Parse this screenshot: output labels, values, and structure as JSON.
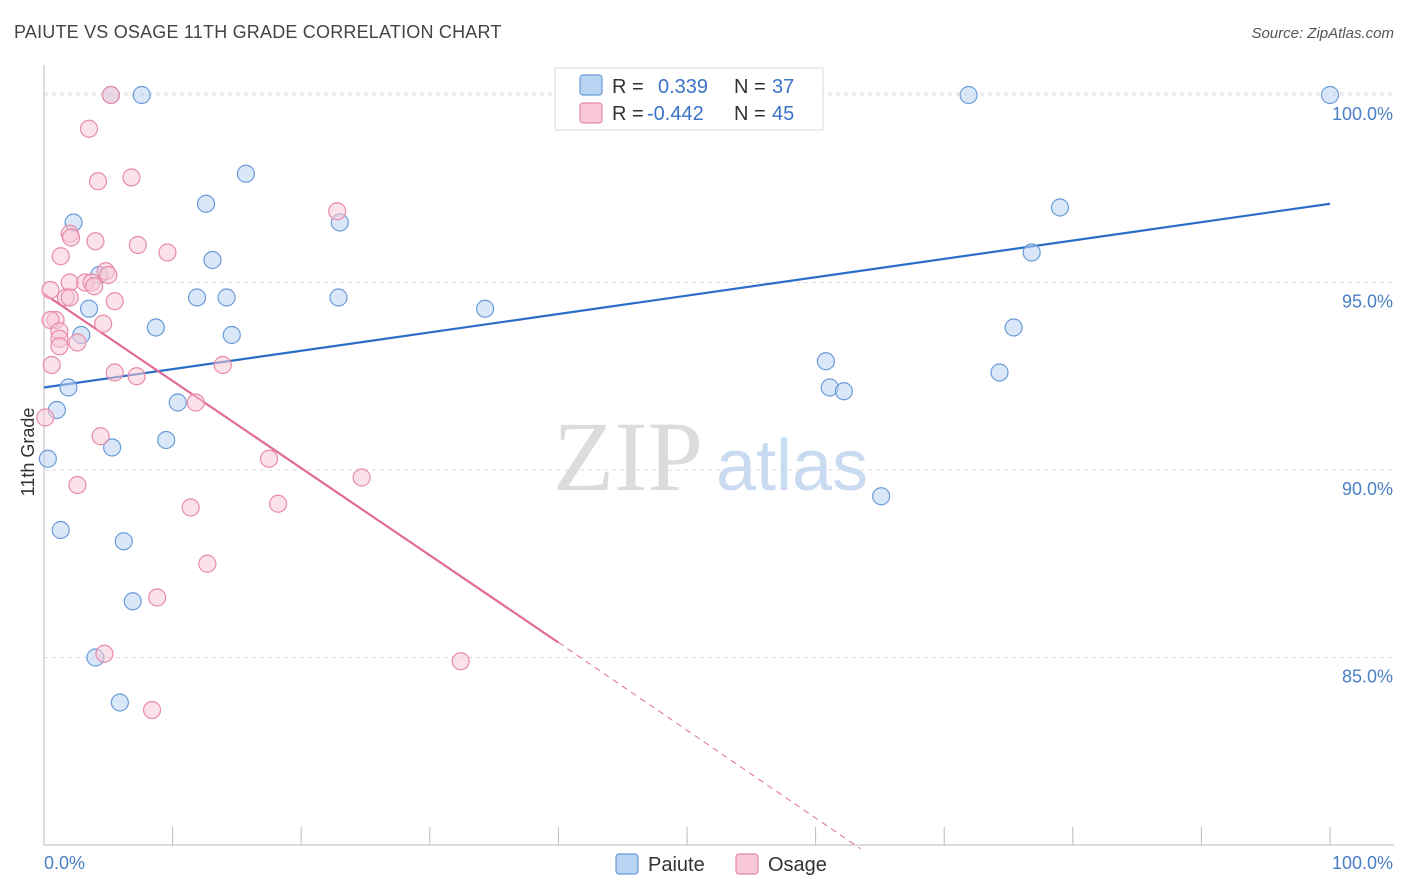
{
  "title": "PAIUTE VS OSAGE 11TH GRADE CORRELATION CHART",
  "source": "Source: ZipAtlas.com",
  "watermark": {
    "zip": "ZIP",
    "atlas": "atlas"
  },
  "colors": {
    "paiute_fill": "#b9d3f3",
    "paiute_stroke": "#6a9bd8",
    "paiute_line": "#2b6ec9",
    "osage_fill": "#f8c8d6",
    "osage_stroke": "#e88aa8",
    "osage_line": "#e06b97",
    "grid": "#dddddd",
    "axis_text": "#4a7fc4"
  },
  "legend": {
    "r_label": "R =",
    "n_label": "N =",
    "paiute": {
      "r": "0.339",
      "n": "37"
    },
    "osage": {
      "r": "-0.442",
      "n": "45"
    }
  },
  "chart_data": {
    "type": "scatter",
    "title": "PAIUTE VS OSAGE 11TH GRADE CORRELATION CHART",
    "xlabel": "",
    "ylabel": "11th Grade",
    "xlim": [
      0,
      100
    ],
    "ylim": [
      80.0,
      100.8
    ],
    "x_ticks": [
      "0.0%",
      "100.0%"
    ],
    "y_ticks": [
      {
        "value": 100,
        "label": "100.0%"
      },
      {
        "value": 95,
        "label": "95.0%"
      },
      {
        "value": 90,
        "label": "90.0%"
      },
      {
        "value": 85,
        "label": "85.0%"
      }
    ],
    "series": [
      {
        "name": "Paiute",
        "points": [
          [
            5.2,
            100.0
          ],
          [
            7.6,
            100.0
          ],
          [
            71.9,
            100.0
          ],
          [
            100.0,
            100.0
          ],
          [
            15.7,
            97.9
          ],
          [
            12.6,
            97.1
          ],
          [
            23.0,
            96.6
          ],
          [
            79.0,
            97.0
          ],
          [
            2.3,
            96.6
          ],
          [
            13.1,
            95.6
          ],
          [
            76.8,
            95.8
          ],
          [
            4.3,
            95.2
          ],
          [
            11.9,
            94.6
          ],
          [
            14.2,
            94.6
          ],
          [
            22.9,
            94.6
          ],
          [
            3.5,
            94.3
          ],
          [
            34.3,
            94.3
          ],
          [
            8.7,
            93.8
          ],
          [
            14.6,
            93.6
          ],
          [
            2.9,
            93.6
          ],
          [
            75.4,
            93.8
          ],
          [
            60.8,
            92.9
          ],
          [
            74.3,
            92.6
          ],
          [
            1.9,
            92.2
          ],
          [
            61.1,
            92.2
          ],
          [
            62.2,
            92.1
          ],
          [
            1.0,
            91.6
          ],
          [
            10.4,
            91.8
          ],
          [
            0.3,
            90.3
          ],
          [
            5.3,
            90.6
          ],
          [
            9.5,
            90.8
          ],
          [
            65.1,
            89.3
          ],
          [
            1.3,
            88.4
          ],
          [
            6.2,
            88.1
          ],
          [
            6.9,
            86.5
          ],
          [
            4.0,
            85.0
          ],
          [
            5.9,
            83.8
          ]
        ]
      },
      {
        "name": "Osage",
        "points": [
          [
            5.2,
            100.0
          ],
          [
            3.5,
            99.1
          ],
          [
            4.2,
            97.7
          ],
          [
            6.8,
            97.8
          ],
          [
            22.8,
            96.9
          ],
          [
            2.0,
            96.3
          ],
          [
            2.1,
            96.2
          ],
          [
            4.0,
            96.1
          ],
          [
            7.3,
            96.0
          ],
          [
            1.3,
            95.7
          ],
          [
            9.6,
            95.8
          ],
          [
            4.8,
            95.3
          ],
          [
            5.0,
            95.2
          ],
          [
            2.0,
            95.0
          ],
          [
            3.2,
            95.0
          ],
          [
            0.5,
            94.8
          ],
          [
            1.7,
            94.6
          ],
          [
            2.0,
            94.6
          ],
          [
            5.5,
            94.5
          ],
          [
            0.9,
            94.0
          ],
          [
            0.5,
            94.0
          ],
          [
            4.6,
            93.9
          ],
          [
            1.2,
            93.7
          ],
          [
            1.2,
            93.5
          ],
          [
            2.6,
            93.4
          ],
          [
            0.6,
            92.8
          ],
          [
            13.9,
            92.8
          ],
          [
            5.5,
            92.6
          ],
          [
            7.2,
            92.5
          ],
          [
            11.8,
            91.8
          ],
          [
            0.1,
            91.4
          ],
          [
            4.4,
            90.9
          ],
          [
            17.5,
            90.3
          ],
          [
            24.7,
            89.8
          ],
          [
            2.6,
            89.6
          ],
          [
            18.2,
            89.1
          ],
          [
            11.4,
            89.0
          ],
          [
            12.7,
            87.5
          ],
          [
            8.8,
            86.6
          ],
          [
            4.7,
            85.1
          ],
          [
            32.4,
            84.9
          ],
          [
            8.4,
            83.6
          ],
          [
            1.2,
            93.3
          ],
          [
            3.7,
            95.0
          ],
          [
            3.9,
            94.9
          ]
        ]
      }
    ],
    "trend_lines": [
      {
        "series": "Paiute",
        "from": [
          0,
          92.2
        ],
        "to": [
          100,
          97.1
        ]
      },
      {
        "series": "Osage",
        "from": [
          0,
          94.7
        ],
        "to": [
          40.0,
          85.4
        ],
        "dashed_to": [
          63.5,
          79.9
        ]
      }
    ],
    "legend_entries": [
      "Paiute",
      "Osage"
    ]
  }
}
